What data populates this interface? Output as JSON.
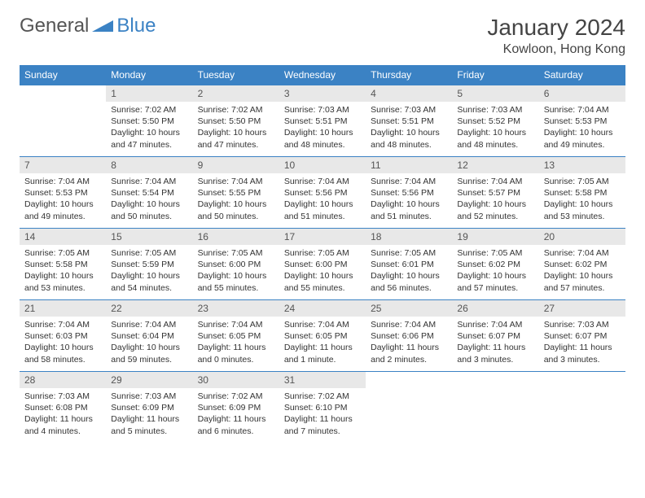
{
  "logo": {
    "part1": "General",
    "part2": "Blue"
  },
  "title": "January 2024",
  "location": "Kowloon, Hong Kong",
  "colors": {
    "header_bg": "#3b82c4",
    "header_text": "#ffffff",
    "daynum_bg": "#e8e8e8",
    "border": "#3b82c4",
    "text": "#333333",
    "logo_gray": "#555555",
    "logo_blue": "#3b82c4"
  },
  "weekdays": [
    "Sunday",
    "Monday",
    "Tuesday",
    "Wednesday",
    "Thursday",
    "Friday",
    "Saturday"
  ],
  "weeks": [
    [
      null,
      {
        "n": "1",
        "sr": "7:02 AM",
        "ss": "5:50 PM",
        "dl": "10 hours and 47 minutes."
      },
      {
        "n": "2",
        "sr": "7:02 AM",
        "ss": "5:50 PM",
        "dl": "10 hours and 47 minutes."
      },
      {
        "n": "3",
        "sr": "7:03 AM",
        "ss": "5:51 PM",
        "dl": "10 hours and 48 minutes."
      },
      {
        "n": "4",
        "sr": "7:03 AM",
        "ss": "5:51 PM",
        "dl": "10 hours and 48 minutes."
      },
      {
        "n": "5",
        "sr": "7:03 AM",
        "ss": "5:52 PM",
        "dl": "10 hours and 48 minutes."
      },
      {
        "n": "6",
        "sr": "7:04 AM",
        "ss": "5:53 PM",
        "dl": "10 hours and 49 minutes."
      }
    ],
    [
      {
        "n": "7",
        "sr": "7:04 AM",
        "ss": "5:53 PM",
        "dl": "10 hours and 49 minutes."
      },
      {
        "n": "8",
        "sr": "7:04 AM",
        "ss": "5:54 PM",
        "dl": "10 hours and 50 minutes."
      },
      {
        "n": "9",
        "sr": "7:04 AM",
        "ss": "5:55 PM",
        "dl": "10 hours and 50 minutes."
      },
      {
        "n": "10",
        "sr": "7:04 AM",
        "ss": "5:56 PM",
        "dl": "10 hours and 51 minutes."
      },
      {
        "n": "11",
        "sr": "7:04 AM",
        "ss": "5:56 PM",
        "dl": "10 hours and 51 minutes."
      },
      {
        "n": "12",
        "sr": "7:04 AM",
        "ss": "5:57 PM",
        "dl": "10 hours and 52 minutes."
      },
      {
        "n": "13",
        "sr": "7:05 AM",
        "ss": "5:58 PM",
        "dl": "10 hours and 53 minutes."
      }
    ],
    [
      {
        "n": "14",
        "sr": "7:05 AM",
        "ss": "5:58 PM",
        "dl": "10 hours and 53 minutes."
      },
      {
        "n": "15",
        "sr": "7:05 AM",
        "ss": "5:59 PM",
        "dl": "10 hours and 54 minutes."
      },
      {
        "n": "16",
        "sr": "7:05 AM",
        "ss": "6:00 PM",
        "dl": "10 hours and 55 minutes."
      },
      {
        "n": "17",
        "sr": "7:05 AM",
        "ss": "6:00 PM",
        "dl": "10 hours and 55 minutes."
      },
      {
        "n": "18",
        "sr": "7:05 AM",
        "ss": "6:01 PM",
        "dl": "10 hours and 56 minutes."
      },
      {
        "n": "19",
        "sr": "7:05 AM",
        "ss": "6:02 PM",
        "dl": "10 hours and 57 minutes."
      },
      {
        "n": "20",
        "sr": "7:04 AM",
        "ss": "6:02 PM",
        "dl": "10 hours and 57 minutes."
      }
    ],
    [
      {
        "n": "21",
        "sr": "7:04 AM",
        "ss": "6:03 PM",
        "dl": "10 hours and 58 minutes."
      },
      {
        "n": "22",
        "sr": "7:04 AM",
        "ss": "6:04 PM",
        "dl": "10 hours and 59 minutes."
      },
      {
        "n": "23",
        "sr": "7:04 AM",
        "ss": "6:05 PM",
        "dl": "11 hours and 0 minutes."
      },
      {
        "n": "24",
        "sr": "7:04 AM",
        "ss": "6:05 PM",
        "dl": "11 hours and 1 minute."
      },
      {
        "n": "25",
        "sr": "7:04 AM",
        "ss": "6:06 PM",
        "dl": "11 hours and 2 minutes."
      },
      {
        "n": "26",
        "sr": "7:04 AM",
        "ss": "6:07 PM",
        "dl": "11 hours and 3 minutes."
      },
      {
        "n": "27",
        "sr": "7:03 AM",
        "ss": "6:07 PM",
        "dl": "11 hours and 3 minutes."
      }
    ],
    [
      {
        "n": "28",
        "sr": "7:03 AM",
        "ss": "6:08 PM",
        "dl": "11 hours and 4 minutes."
      },
      {
        "n": "29",
        "sr": "7:03 AM",
        "ss": "6:09 PM",
        "dl": "11 hours and 5 minutes."
      },
      {
        "n": "30",
        "sr": "7:02 AM",
        "ss": "6:09 PM",
        "dl": "11 hours and 6 minutes."
      },
      {
        "n": "31",
        "sr": "7:02 AM",
        "ss": "6:10 PM",
        "dl": "11 hours and 7 minutes."
      },
      null,
      null,
      null
    ]
  ],
  "labels": {
    "sunrise": "Sunrise:",
    "sunset": "Sunset:",
    "daylight": "Daylight:"
  }
}
